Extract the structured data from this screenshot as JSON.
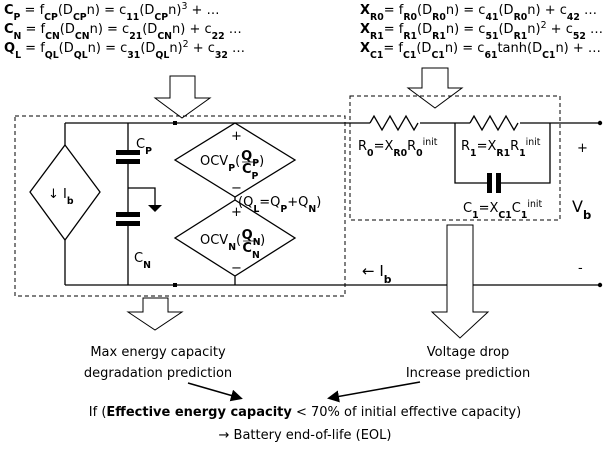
{
  "left_equations": [
    [
      [
        "C",
        "b"
      ],
      [
        "P",
        "bsub"
      ],
      [
        " = f",
        ""
      ],
      [
        "CP",
        "sub"
      ],
      [
        "(D",
        ""
      ],
      [
        "CP",
        "sub"
      ],
      [
        "n) = c",
        ""
      ],
      [
        "11",
        "sub"
      ],
      [
        "(D",
        ""
      ],
      [
        "CP",
        "sub"
      ],
      [
        "n)",
        ""
      ],
      [
        "3",
        "sup"
      ],
      [
        " + …",
        ""
      ]
    ],
    [
      [
        "C",
        "b"
      ],
      [
        "N",
        "bsub"
      ],
      [
        " = f",
        ""
      ],
      [
        "CN",
        "sub"
      ],
      [
        "(D",
        ""
      ],
      [
        "CN",
        "sub"
      ],
      [
        "n) = c",
        ""
      ],
      [
        "21",
        "sub"
      ],
      [
        "(D",
        ""
      ],
      [
        "CN",
        "sub"
      ],
      [
        "n) + c",
        ""
      ],
      [
        "22",
        "sub"
      ],
      [
        " …",
        ""
      ]
    ],
    [
      [
        "Q",
        "b"
      ],
      [
        "L",
        "bsub"
      ],
      [
        " = f",
        ""
      ],
      [
        "QL",
        "sub"
      ],
      [
        "(D",
        ""
      ],
      [
        "QL",
        "sub"
      ],
      [
        "n) = c",
        ""
      ],
      [
        "31",
        "sub"
      ],
      [
        "(D",
        ""
      ],
      [
        "QL",
        "sub"
      ],
      [
        "n)",
        ""
      ],
      [
        "2",
        "sup"
      ],
      [
        " + c",
        ""
      ],
      [
        "32",
        "sub"
      ],
      [
        " …",
        ""
      ]
    ]
  ],
  "right_equations": [
    [
      [
        "X",
        "b"
      ],
      [
        "R0",
        "bsub"
      ],
      [
        "= f",
        ""
      ],
      [
        "R0",
        "sub"
      ],
      [
        "(D",
        ""
      ],
      [
        "R0",
        "sub"
      ],
      [
        "n) = c",
        ""
      ],
      [
        "41",
        "sub"
      ],
      [
        "(D",
        ""
      ],
      [
        "R0",
        "sub"
      ],
      [
        "n) + c",
        ""
      ],
      [
        "42",
        "sub"
      ],
      [
        " …",
        ""
      ]
    ],
    [
      [
        "X",
        "b"
      ],
      [
        "R1",
        "bsub"
      ],
      [
        "= f",
        ""
      ],
      [
        "R1",
        "sub"
      ],
      [
        "(D",
        ""
      ],
      [
        "R1",
        "sub"
      ],
      [
        "n) = c",
        ""
      ],
      [
        "51",
        "sub"
      ],
      [
        "(D",
        ""
      ],
      [
        "R1",
        "sub"
      ],
      [
        "n)",
        ""
      ],
      [
        "2",
        "sup"
      ],
      [
        " + c",
        ""
      ],
      [
        "52",
        "sub"
      ],
      [
        " …",
        ""
      ]
    ],
    [
      [
        "X",
        "b"
      ],
      [
        "C1",
        "bsub"
      ],
      [
        "= f",
        ""
      ],
      [
        "C1",
        "sub"
      ],
      [
        "(D",
        ""
      ],
      [
        "C1",
        "sub"
      ],
      [
        "n) = c",
        ""
      ],
      [
        "61",
        "sub"
      ],
      [
        "tanh(D",
        ""
      ],
      [
        "C1",
        "sub"
      ],
      [
        "n) + …",
        ""
      ]
    ]
  ],
  "circuit": {
    "current_source": [
      [
        "↓ I",
        ""
      ],
      [
        "b",
        "sub"
      ]
    ],
    "cp": [
      [
        "C",
        ""
      ],
      [
        "P",
        "sub"
      ]
    ],
    "cn": [
      [
        "C",
        ""
      ],
      [
        "N",
        "sub"
      ]
    ],
    "ocv_p": {
      "runs": [
        [
          "OCV",
          ""
        ],
        [
          "P",
          "sub"
        ],
        [
          "(",
          ""
        ]
      ],
      "num": [
        [
          "Q",
          "b"
        ],
        [
          "P",
          "bsub"
        ]
      ],
      "den": [
        [
          "C",
          "b"
        ],
        [
          "P",
          "bsub"
        ]
      ],
      "close": ")"
    },
    "ocv_n": {
      "runs": [
        [
          "OCV",
          ""
        ],
        [
          "N",
          "sub"
        ],
        [
          "(",
          ""
        ]
      ],
      "num": [
        [
          "Q",
          "b"
        ],
        [
          "N",
          "bsub"
        ]
      ],
      "den": [
        [
          "C",
          "b"
        ],
        [
          "N",
          "bsub"
        ]
      ],
      "close": ")"
    },
    "plus": "+",
    "minus": "−",
    "ql": [
      [
        "(Q",
        ""
      ],
      [
        "L",
        "sub"
      ],
      [
        "=Q",
        ""
      ],
      [
        "P",
        "sub"
      ],
      [
        "+Q",
        ""
      ],
      [
        "N",
        "sub"
      ],
      [
        ")",
        ""
      ]
    ],
    "r0": [
      [
        "R",
        ""
      ],
      [
        "0",
        "sub"
      ],
      [
        "=X",
        ""
      ],
      [
        "R0",
        "sub"
      ],
      [
        "R",
        ""
      ],
      [
        "0",
        "sub"
      ],
      [
        "init",
        "sup"
      ]
    ],
    "r1": [
      [
        "R",
        ""
      ],
      [
        "1",
        "sub"
      ],
      [
        "=X",
        ""
      ],
      [
        "R1",
        "sub"
      ],
      [
        "R",
        ""
      ],
      [
        "1",
        "sub"
      ],
      [
        "init",
        "sup"
      ]
    ],
    "c1": [
      [
        "C",
        ""
      ],
      [
        "1",
        "sub"
      ],
      [
        "=X",
        ""
      ],
      [
        "C1",
        "sub"
      ],
      [
        "C",
        ""
      ],
      [
        "1",
        "sub"
      ],
      [
        "init",
        "sup"
      ]
    ],
    "vplus": "+",
    "vb": [
      [
        "V",
        ""
      ],
      [
        "b",
        "sub"
      ]
    ],
    "vminus": "-",
    "ib": [
      [
        "← I",
        ""
      ],
      [
        "b",
        "sub"
      ]
    ]
  },
  "outputs": {
    "left": [
      "Max energy capacity",
      "degradation prediction"
    ],
    "right": [
      "Voltage drop",
      "Increase prediction"
    ]
  },
  "conclusion": {
    "line1": [
      [
        "If (",
        ""
      ],
      [
        "Effective energy capacity",
        "b"
      ],
      [
        " < 70% of initial effective capacity)",
        ""
      ]
    ],
    "line2": "→ Battery end-of-life (EOL)"
  }
}
